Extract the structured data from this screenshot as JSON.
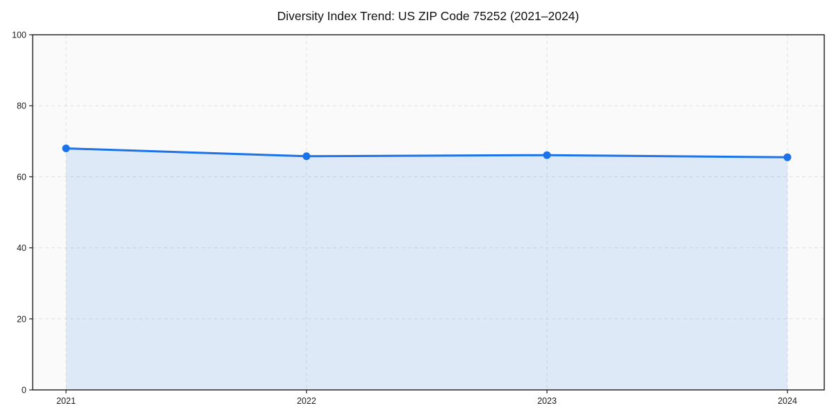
{
  "chart_data": {
    "type": "area",
    "title": "Diversity Index Trend: US ZIP Code 75252 (2021–2024)",
    "categories": [
      "2021",
      "2022",
      "2023",
      "2024"
    ],
    "values": [
      68.0,
      65.8,
      66.1,
      65.5
    ],
    "xlabel": "",
    "ylabel": "",
    "ylim": [
      0,
      100
    ],
    "yticks": [
      0,
      20,
      40,
      60,
      80,
      100
    ],
    "grid": {
      "show": true,
      "style": "dashed",
      "axes": "both"
    },
    "legend": {
      "show": false
    },
    "marker": "circle",
    "colors": {
      "line": "#1a73e8",
      "marker": "#1a73e8",
      "area_fill": "rgba(26,115,232,0.12)",
      "grid": "#e0e0e0",
      "frame": "#1a1a1a",
      "plot_background": "#fafafa",
      "figure_background": "#ffffff",
      "text": "#1a1a1a"
    }
  }
}
